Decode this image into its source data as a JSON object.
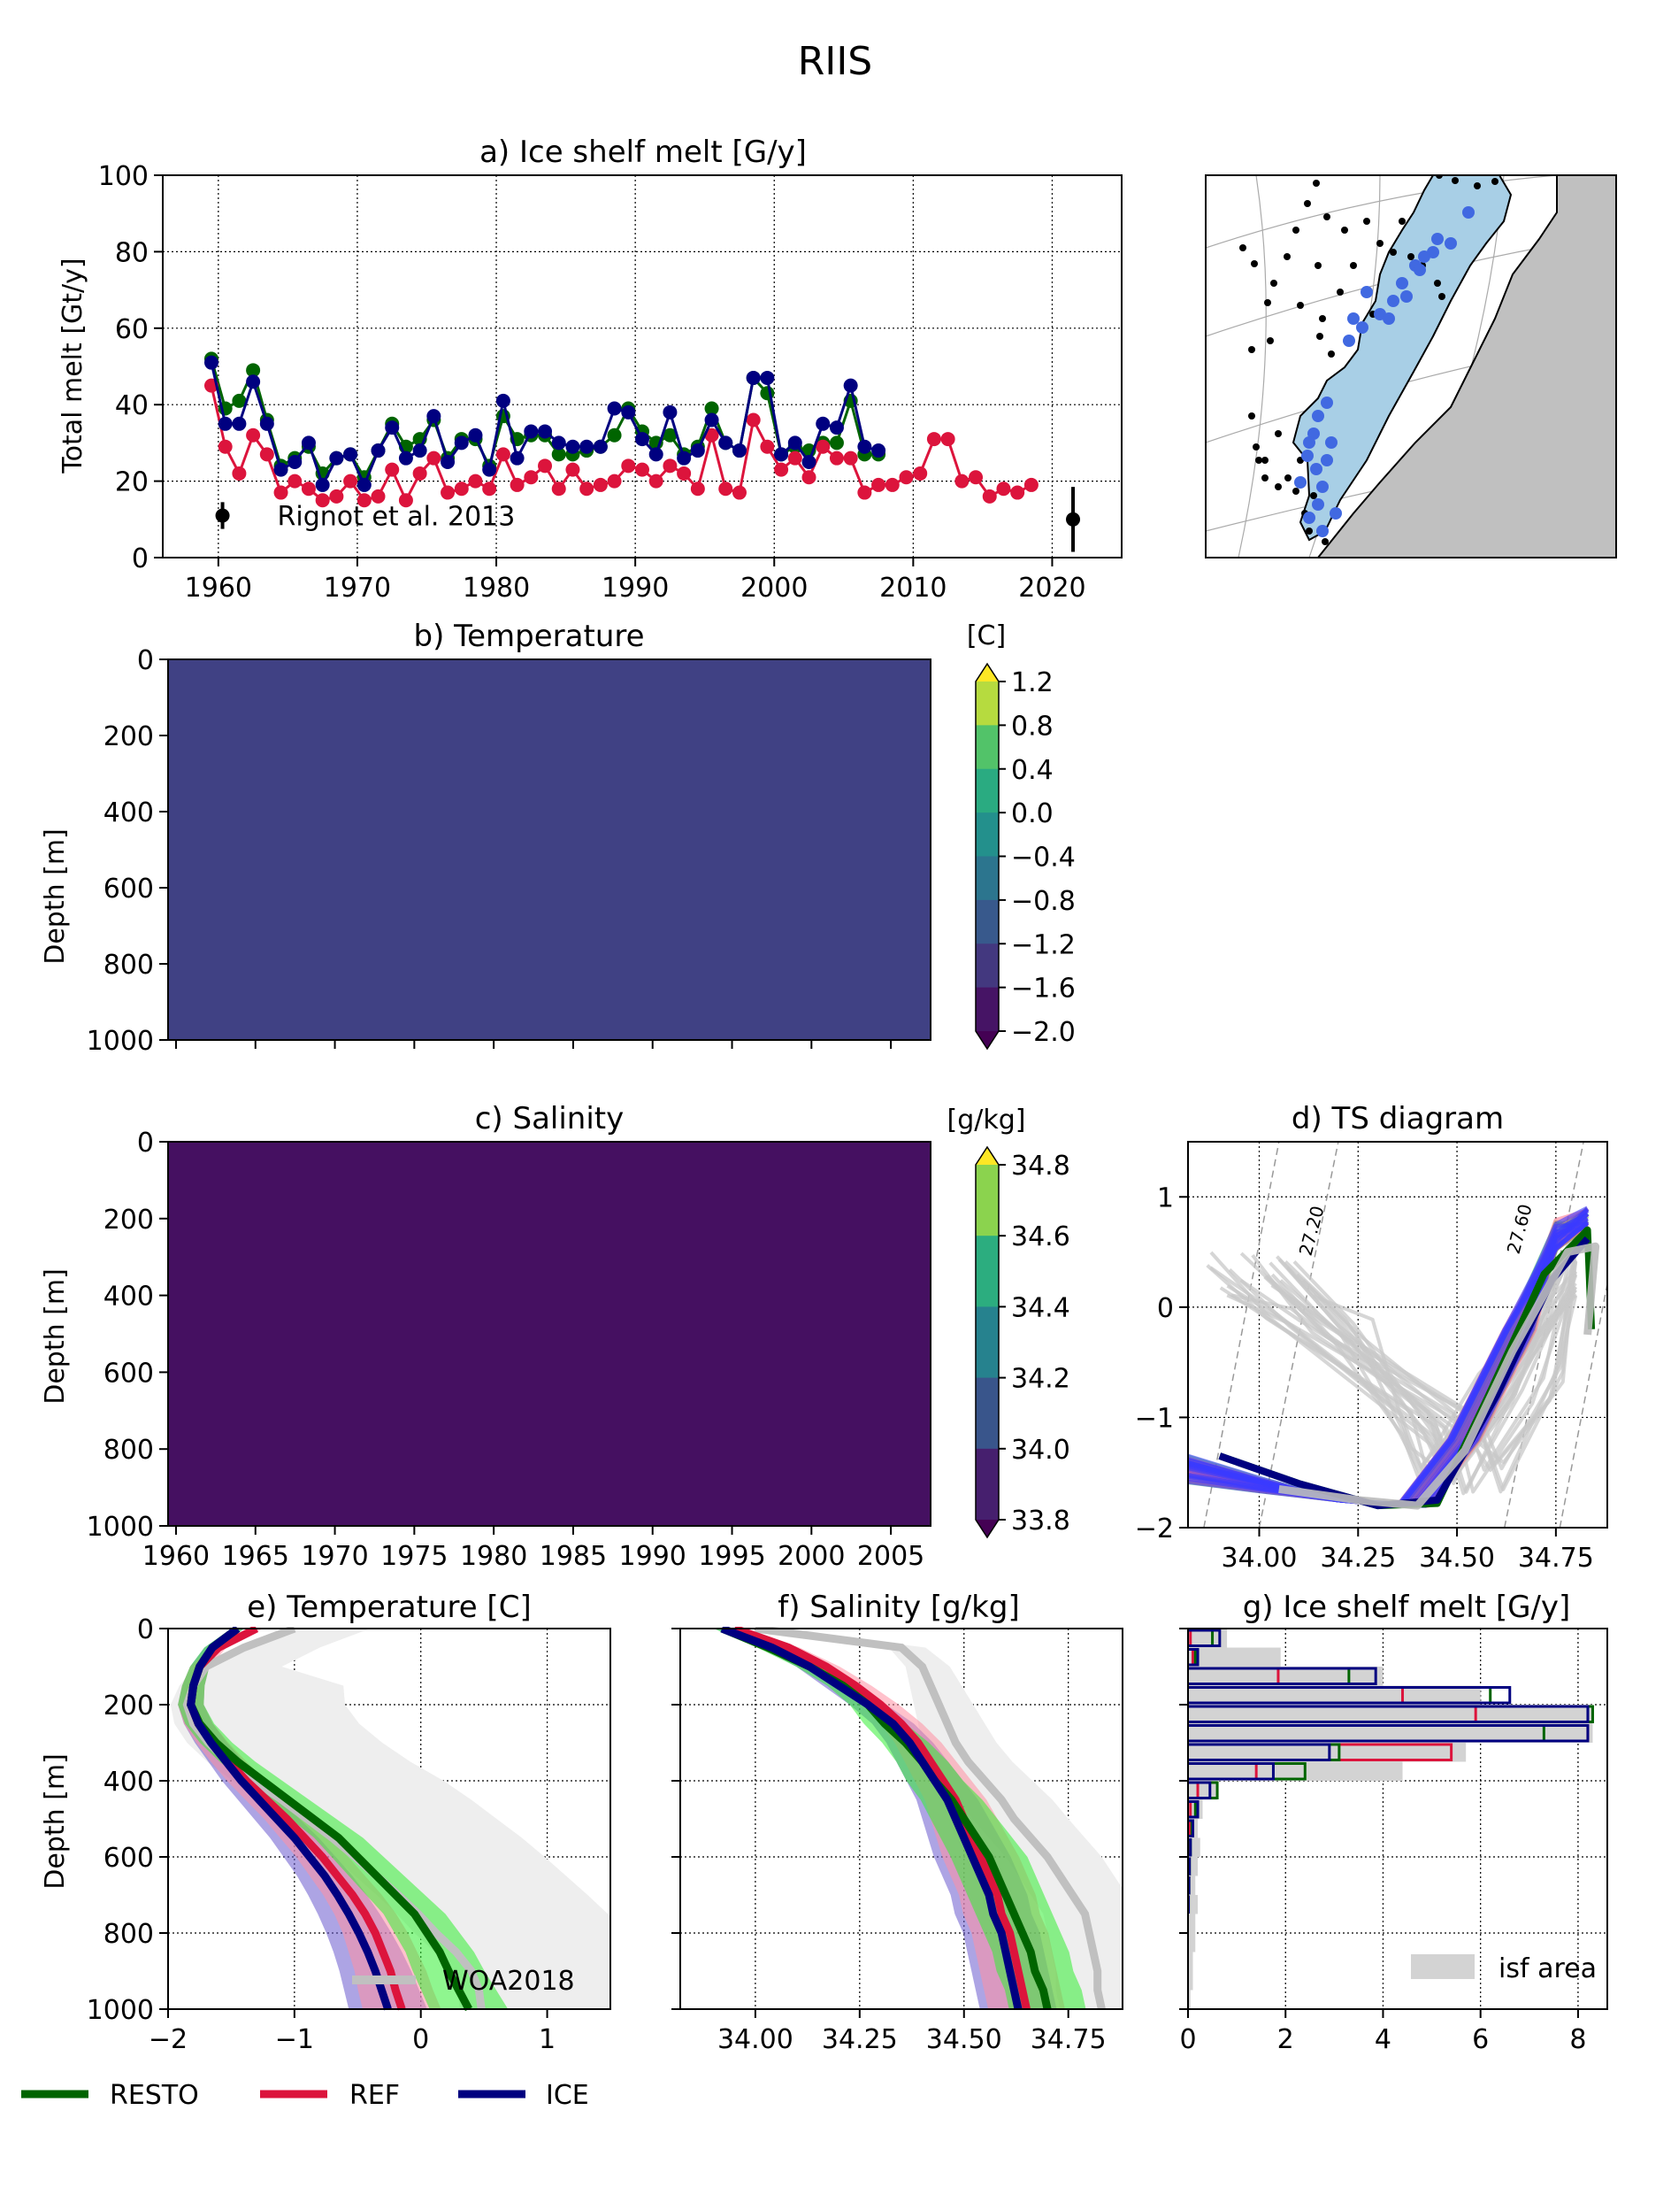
{
  "figure_title": "RIIS",
  "colors": {
    "RESTO": "#006400",
    "REF": "#dc143c",
    "ICE": "#000080",
    "obs": "#c0c0c0",
    "blue_dots": "#4169e1",
    "land": "#c0c0c0",
    "ice_shelf": "#a8cfe6"
  },
  "chart_data": [
    {
      "id": "a",
      "type": "line",
      "title": "a) Ice shelf melt [G/y]",
      "xlabel": "",
      "ylabel": "Total melt [Gt/y]",
      "xlim": [
        1956,
        2025
      ],
      "ylim": [
        0,
        100
      ],
      "xticks": [
        1960,
        1970,
        1980,
        1990,
        2000,
        2010,
        2020
      ],
      "yticks": [
        0,
        20,
        40,
        60,
        80,
        100
      ],
      "grid": true,
      "series": [
        {
          "name": "RESTO",
          "x": [
            1959.5,
            1960.5,
            1961.5,
            1962.5,
            1963.5,
            1964.5,
            1965.5,
            1966.5,
            1967.5,
            1968.5,
            1969.5,
            1970.5,
            1971.5,
            1972.5,
            1973.5,
            1974.5,
            1975.5,
            1976.5,
            1977.5,
            1978.5,
            1979.5,
            1980.5,
            1981.5,
            1982.5,
            1983.5,
            1984.5,
            1985.5,
            1986.5,
            1987.5,
            1988.5,
            1989.5,
            1990.5,
            1991.5,
            1992.5,
            1993.5,
            1994.5,
            1995.5,
            1996.5,
            1997.5,
            1998.5,
            1999.5,
            2000.5,
            2001.5,
            2002.5,
            2003.5,
            2004.5,
            2005.5,
            2006.5,
            2007.5
          ],
          "values": [
            52,
            39,
            41,
            49,
            36,
            24,
            26,
            29,
            22,
            26,
            27,
            21,
            28,
            35,
            29,
            31,
            36,
            26,
            31,
            31,
            24,
            37,
            31,
            32,
            32,
            27,
            27,
            28,
            29,
            32,
            39,
            33,
            30,
            32,
            27,
            29,
            39,
            30,
            28,
            47,
            43,
            27,
            29,
            28,
            30,
            30,
            41,
            27,
            27
          ]
        },
        {
          "name": "REF",
          "x": [
            1959.5,
            1960.5,
            1961.5,
            1962.5,
            1963.5,
            1964.5,
            1965.5,
            1966.5,
            1967.5,
            1968.5,
            1969.5,
            1970.5,
            1971.5,
            1972.5,
            1973.5,
            1974.5,
            1975.5,
            1976.5,
            1977.5,
            1978.5,
            1979.5,
            1980.5,
            1981.5,
            1982.5,
            1983.5,
            1984.5,
            1985.5,
            1986.5,
            1987.5,
            1988.5,
            1989.5,
            1990.5,
            1991.5,
            1992.5,
            1993.5,
            1994.5,
            1995.5,
            1996.5,
            1997.5,
            1998.5,
            1999.5,
            2000.5,
            2001.5,
            2002.5,
            2003.5,
            2004.5,
            2005.5,
            2006.5,
            2007.5,
            2008.5,
            2009.5,
            2010.5,
            2011.5,
            2012.5,
            2013.5,
            2014.5,
            2015.5,
            2016.5,
            2017.5,
            2018.5
          ],
          "values": [
            45,
            29,
            22,
            32,
            27,
            17,
            20,
            18,
            15,
            16,
            20,
            15,
            16,
            23,
            15,
            22,
            26,
            17,
            18,
            20,
            18,
            27,
            19,
            21,
            24,
            18,
            23,
            18,
            19,
            20,
            24,
            23,
            20,
            24,
            22,
            18,
            32,
            18,
            17,
            36,
            29,
            23,
            26,
            21,
            29,
            26,
            26,
            17,
            19,
            19,
            21,
            22,
            31,
            31,
            20,
            21,
            16,
            18,
            17,
            19
          ]
        },
        {
          "name": "ICE",
          "x": [
            1959.5,
            1960.5,
            1961.5,
            1962.5,
            1963.5,
            1964.5,
            1965.5,
            1966.5,
            1967.5,
            1968.5,
            1969.5,
            1970.5,
            1971.5,
            1972.5,
            1973.5,
            1974.5,
            1975.5,
            1976.5,
            1977.5,
            1978.5,
            1979.5,
            1980.5,
            1981.5,
            1982.5,
            1983.5,
            1984.5,
            1985.5,
            1986.5,
            1987.5,
            1988.5,
            1989.5,
            1990.5,
            1991.5,
            1992.5,
            1993.5,
            1994.5,
            1995.5,
            1996.5,
            1997.5,
            1998.5,
            1999.5,
            2000.5,
            2001.5,
            2002.5,
            2003.5,
            2004.5,
            2005.5,
            2006.5,
            2007.5
          ],
          "values": [
            51,
            35,
            35,
            46,
            35,
            23,
            25,
            30,
            19,
            26,
            27,
            19,
            28,
            34,
            26,
            28,
            37,
            25,
            30,
            32,
            23,
            41,
            26,
            33,
            33,
            30,
            29,
            29,
            29,
            39,
            38,
            31,
            27,
            38,
            26,
            28,
            36,
            30,
            28,
            47,
            47,
            27,
            30,
            25,
            35,
            34,
            45,
            29,
            28
          ]
        }
      ],
      "obs": [
        {
          "label": "Rignot et al. 2013",
          "x": 1960.3,
          "y": 11,
          "err": 3.5
        },
        {
          "x": 2021.5,
          "y": 10,
          "err": 8.5
        }
      ]
    },
    {
      "id": "b",
      "type": "heatmap",
      "title": "b) Temperature",
      "ylabel": "Depth [m]",
      "ylim": [
        1000,
        0
      ],
      "yticks": [
        0,
        200,
        400,
        600,
        800,
        1000
      ],
      "xlim": [
        1959.5,
        2007.5
      ],
      "colorbar": {
        "unit": "[C]",
        "ticks": [
          "1.2",
          "0.8",
          "0.4",
          "0.0",
          "−0.4",
          "−0.8",
          "−1.2",
          "−1.6",
          "−2.0"
        ]
      }
    },
    {
      "id": "c",
      "type": "heatmap",
      "title": "c) Salinity",
      "ylabel": "Depth [m]",
      "ylim": [
        1000,
        0
      ],
      "yticks": [
        0,
        200,
        400,
        600,
        800,
        1000
      ],
      "xlim": [
        1959.5,
        2007.5
      ],
      "xticks": [
        1960,
        1965,
        1970,
        1975,
        1980,
        1985,
        1990,
        1995,
        2000,
        2005
      ],
      "colorbar": {
        "unit": "[g/kg]",
        "ticks": [
          "34.8",
          "34.6",
          "34.4",
          "34.2",
          "34.0",
          "33.8"
        ]
      }
    },
    {
      "id": "d",
      "type": "scatter",
      "title": "d) TS diagram",
      "xlim": [
        33.82,
        34.88
      ],
      "ylim": [
        -2,
        1.5
      ],
      "xticks": [
        "34.00",
        "34.25",
        "34.50",
        "34.75"
      ],
      "yticks": [
        "1",
        "0",
        "−1",
        "−2"
      ],
      "isopycnals": [
        "27.20",
        "27.60"
      ]
    },
    {
      "id": "e",
      "type": "line",
      "title": "e) Temperature [C]",
      "ylabel": "Depth [m]",
      "xlim": [
        -2,
        1.5
      ],
      "ylim": [
        1000,
        0
      ],
      "xticks": [
        "−2",
        "−1",
        "0",
        "1"
      ],
      "yticks": [
        0,
        200,
        400,
        600,
        800,
        1000
      ],
      "depth": [
        0,
        50,
        100,
        150,
        200,
        250,
        300,
        350,
        400,
        450,
        500,
        550,
        600,
        650,
        700,
        750,
        800,
        850,
        900,
        950,
        1000
      ],
      "series": [
        {
          "name": "RESTO",
          "values": [
            -1.45,
            -1.65,
            -1.75,
            -1.8,
            -1.82,
            -1.75,
            -1.62,
            -1.45,
            -1.25,
            -1.05,
            -0.85,
            -0.65,
            -0.5,
            -0.35,
            -0.2,
            -0.05,
            0.05,
            0.15,
            0.22,
            0.3,
            0.38
          ]
        },
        {
          "name": "REF",
          "values": [
            -1.3,
            -1.6,
            -1.75,
            -1.8,
            -1.82,
            -1.76,
            -1.65,
            -1.52,
            -1.38,
            -1.22,
            -1.06,
            -0.92,
            -0.78,
            -0.66,
            -0.54,
            -0.44,
            -0.36,
            -0.3,
            -0.24,
            -0.2,
            -0.15
          ]
        },
        {
          "name": "ICE",
          "values": [
            -1.45,
            -1.65,
            -1.75,
            -1.8,
            -1.82,
            -1.76,
            -1.66,
            -1.54,
            -1.42,
            -1.28,
            -1.14,
            -1.0,
            -0.88,
            -0.76,
            -0.66,
            -0.57,
            -0.49,
            -0.42,
            -0.36,
            -0.31,
            -0.26
          ]
        },
        {
          "name": "WOA2018",
          "values": [
            -1.0,
            -1.4,
            -1.7,
            -1.8,
            -1.85,
            -1.8,
            -1.68,
            -1.52,
            -1.32,
            -1.1,
            -0.9,
            -0.7,
            -0.52,
            -0.35,
            -0.18,
            -0.02,
            0.12,
            0.28,
            0.4,
            0.46,
            0.48
          ]
        }
      ]
    },
    {
      "id": "f",
      "type": "line",
      "title": "f) Salinity [g/kg]",
      "xlim": [
        33.82,
        34.88
      ],
      "ylim": [
        1000,
        0
      ],
      "xticks": [
        "34.00",
        "34.25",
        "34.50",
        "34.75"
      ],
      "depth": [
        0,
        50,
        100,
        150,
        200,
        250,
        300,
        350,
        400,
        450,
        500,
        550,
        600,
        650,
        700,
        750,
        800,
        850,
        900,
        950,
        1000
      ],
      "series": [
        {
          "name": "RESTO",
          "values": [
            33.92,
            34.03,
            34.13,
            34.21,
            34.27,
            34.31,
            34.36,
            34.4,
            34.43,
            34.47,
            34.5,
            34.53,
            34.56,
            34.58,
            34.6,
            34.62,
            34.64,
            34.66,
            34.67,
            34.69,
            34.7
          ]
        },
        {
          "name": "REF",
          "values": [
            33.95,
            34.08,
            34.17,
            34.24,
            34.3,
            34.35,
            34.39,
            34.42,
            34.45,
            34.48,
            34.5,
            34.52,
            34.54,
            34.56,
            34.58,
            34.59,
            34.61,
            34.62,
            34.63,
            34.64,
            34.65
          ]
        },
        {
          "name": "ICE",
          "values": [
            33.92,
            34.04,
            34.13,
            34.2,
            34.27,
            34.33,
            34.37,
            34.4,
            34.43,
            34.46,
            34.48,
            34.5,
            34.52,
            34.54,
            34.56,
            34.57,
            34.59,
            34.6,
            34.61,
            34.62,
            34.63
          ]
        },
        {
          "name": "WOA2018",
          "values": [
            34.0,
            34.35,
            34.4,
            34.42,
            34.44,
            34.46,
            34.48,
            34.51,
            34.55,
            34.59,
            34.62,
            34.66,
            34.7,
            34.73,
            34.76,
            34.79,
            34.8,
            34.81,
            34.82,
            34.82,
            34.83
          ]
        }
      ]
    },
    {
      "id": "g",
      "type": "bar",
      "title": "g) Ice shelf melt [G/y]",
      "xlim": [
        0,
        8.6
      ],
      "ylim": [
        1000,
        0
      ],
      "xticks": [
        "0",
        "2",
        "4",
        "6",
        "8"
      ],
      "legend": "isf area",
      "bins": [
        0,
        50,
        100,
        150,
        200,
        250,
        300,
        350,
        400,
        450,
        500,
        550,
        600,
        650,
        700,
        750,
        800,
        850,
        900,
        950
      ],
      "isf_area": [
        0.8,
        1.9,
        4.0,
        6.0,
        8.3,
        8.3,
        5.7,
        4.4,
        0.6,
        0.3,
        0.2,
        0.25,
        0.2,
        0.15,
        0.2,
        0.15,
        0.15,
        0.1,
        0.1,
        0.05
      ],
      "series": [
        {
          "name": "REF",
          "values": [
            0.05,
            0.1,
            1.85,
            4.4,
            5.9,
            8.2,
            5.4,
            1.4,
            0.2,
            0.05,
            0.03,
            0.02,
            0.02,
            0.01,
            0,
            0,
            0,
            0,
            0,
            0
          ]
        },
        {
          "name": "RESTO",
          "values": [
            0.5,
            0.15,
            3.3,
            6.2,
            8.3,
            7.3,
            3.1,
            2.4,
            0.6,
            0.15,
            0.08,
            0.05,
            0.03,
            0.02,
            0.01,
            0,
            0,
            0,
            0,
            0
          ]
        },
        {
          "name": "ICE",
          "values": [
            0.65,
            0.2,
            3.85,
            6.6,
            8.2,
            8.2,
            2.9,
            1.75,
            0.45,
            0.2,
            0.1,
            0.05,
            0.03,
            0.02,
            0.01,
            0,
            0,
            0,
            0,
            0
          ]
        }
      ]
    }
  ],
  "legend_items": [
    "RESTO",
    "REF",
    "ICE"
  ],
  "woa_label": "WOA2018"
}
